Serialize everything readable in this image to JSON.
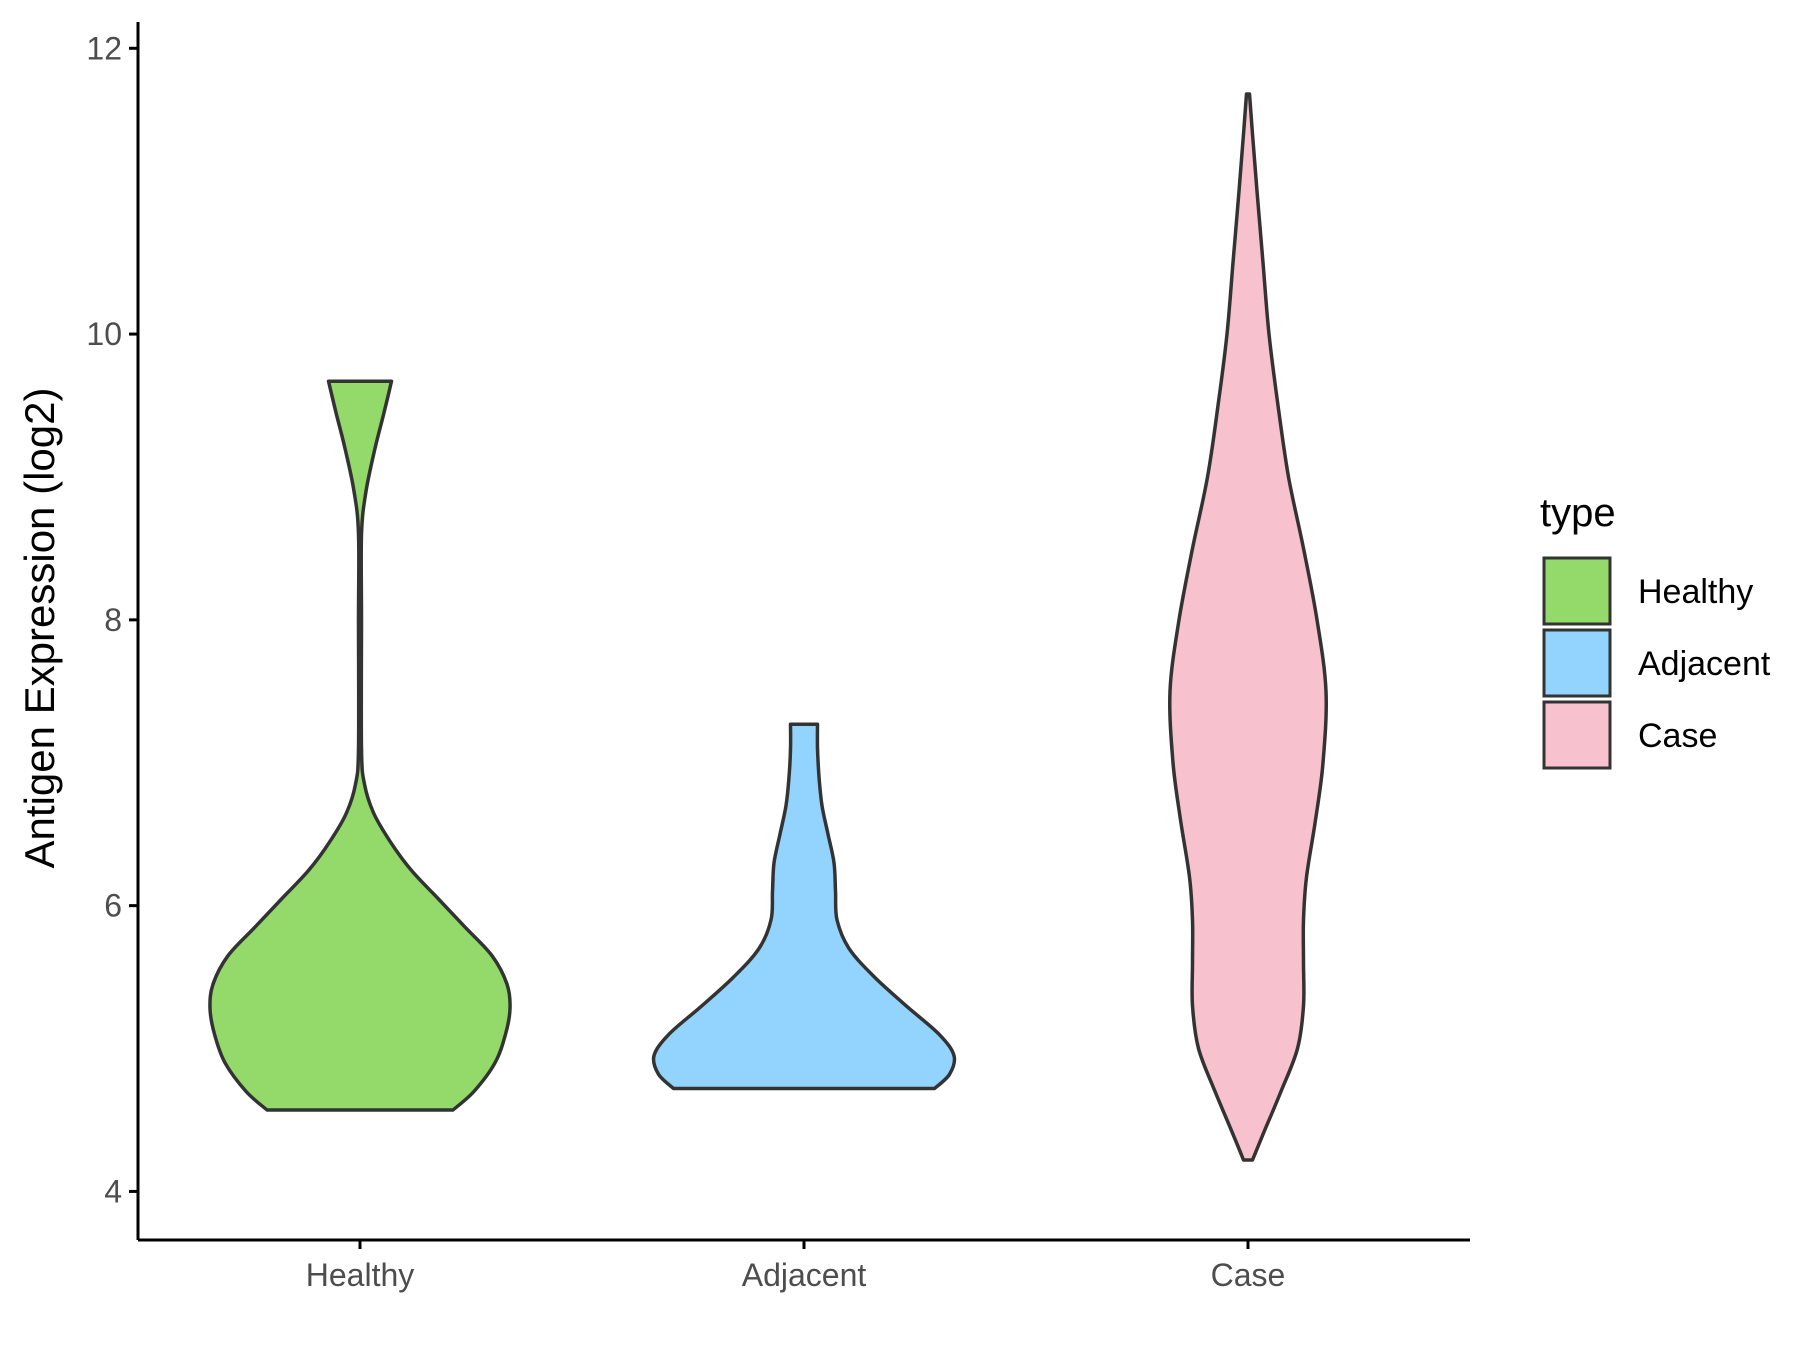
{
  "chart_data": {
    "type": "violin",
    "title": "",
    "xlabel": "",
    "ylabel": "Antigen Expression (log2)",
    "ylim": [
      3.8,
      12.1
    ],
    "yticks": [
      4,
      6,
      8,
      10,
      12
    ],
    "grid": false,
    "categories": [
      "Healthy",
      "Adjacent",
      "Case"
    ],
    "legend": {
      "title": "type",
      "position": "right",
      "entries": [
        "Healthy",
        "Adjacent",
        "Case"
      ]
    },
    "colors": {
      "Healthy": "#93da6a",
      "Adjacent": "#92d4fe",
      "Case": "#f7c1cd",
      "outline": "#333333"
    },
    "series": [
      {
        "name": "Healthy",
        "min": 4.57,
        "max": 9.67,
        "profile": [
          [
            4.57,
            0.62
          ],
          [
            4.7,
            0.76
          ],
          [
            4.9,
            0.9
          ],
          [
            5.1,
            0.97
          ],
          [
            5.28,
            1.0
          ],
          [
            5.45,
            0.98
          ],
          [
            5.65,
            0.88
          ],
          [
            5.85,
            0.7
          ],
          [
            6.05,
            0.52
          ],
          [
            6.25,
            0.34
          ],
          [
            6.45,
            0.2
          ],
          [
            6.65,
            0.09
          ],
          [
            6.85,
            0.03
          ],
          [
            7.1,
            0.01
          ],
          [
            8.0,
            0.01
          ],
          [
            8.6,
            0.01
          ],
          [
            8.9,
            0.04
          ],
          [
            9.2,
            0.1
          ],
          [
            9.45,
            0.16
          ],
          [
            9.67,
            0.21
          ]
        ]
      },
      {
        "name": "Adjacent",
        "min": 4.72,
        "max": 7.27,
        "profile": [
          [
            4.72,
            0.87
          ],
          [
            4.82,
            0.97
          ],
          [
            4.95,
            1.0
          ],
          [
            5.1,
            0.9
          ],
          [
            5.3,
            0.68
          ],
          [
            5.5,
            0.47
          ],
          [
            5.7,
            0.3
          ],
          [
            5.9,
            0.22
          ],
          [
            6.1,
            0.21
          ],
          [
            6.3,
            0.2
          ],
          [
            6.5,
            0.16
          ],
          [
            6.7,
            0.12
          ],
          [
            6.9,
            0.1
          ],
          [
            7.1,
            0.09
          ],
          [
            7.27,
            0.09
          ]
        ]
      },
      {
        "name": "Case",
        "min": 4.22,
        "max": 11.68,
        "profile": [
          [
            4.22,
            0.03
          ],
          [
            4.4,
            0.1
          ],
          [
            4.7,
            0.22
          ],
          [
            5.0,
            0.33
          ],
          [
            5.3,
            0.37
          ],
          [
            5.6,
            0.37
          ],
          [
            5.9,
            0.37
          ],
          [
            6.2,
            0.39
          ],
          [
            6.6,
            0.45
          ],
          [
            7.0,
            0.5
          ],
          [
            7.5,
            0.52
          ],
          [
            8.0,
            0.46
          ],
          [
            8.5,
            0.37
          ],
          [
            9.0,
            0.27
          ],
          [
            9.5,
            0.2
          ],
          [
            10.0,
            0.14
          ],
          [
            10.5,
            0.1
          ],
          [
            11.0,
            0.06
          ],
          [
            11.4,
            0.03
          ],
          [
            11.68,
            0.01
          ]
        ]
      }
    ]
  }
}
